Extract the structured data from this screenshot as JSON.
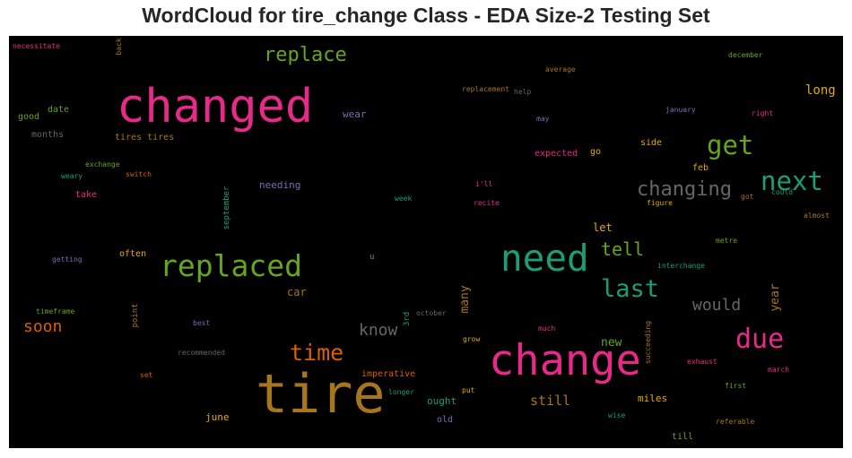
{
  "chart_data": {
    "type": "wordcloud",
    "title": "WordCloud for tire_change Class - EDA Size-2 Testing Set",
    "background": "#000000",
    "palette": [
      "#e7298a",
      "#1b9e77",
      "#66a61e",
      "#d95f02",
      "#7570b3",
      "#e6ab02",
      "#a6761d",
      "#666666"
    ],
    "words": [
      {
        "text": "tire",
        "weight": 1.0,
        "color": "#a6761d",
        "vertical": false
      },
      {
        "text": "changed",
        "weight": 0.86,
        "color": "#e7298a",
        "vertical": false
      },
      {
        "text": "change",
        "weight": 0.79,
        "color": "#e7298a",
        "vertical": false
      },
      {
        "text": "need",
        "weight": 0.68,
        "color": "#1b9e77",
        "vertical": false
      },
      {
        "text": "replaced",
        "weight": 0.55,
        "color": "#66a61e",
        "vertical": false
      },
      {
        "text": "due",
        "weight": 0.5,
        "color": "#e7298a",
        "vertical": false
      },
      {
        "text": "get",
        "weight": 0.49,
        "color": "#66a61e",
        "vertical": false
      },
      {
        "text": "next",
        "weight": 0.48,
        "color": "#1b9e77",
        "vertical": false
      },
      {
        "text": "last",
        "weight": 0.45,
        "color": "#1b9e77",
        "vertical": false
      },
      {
        "text": "time",
        "weight": 0.41,
        "color": "#d95f02",
        "vertical": false
      },
      {
        "text": "replace",
        "weight": 0.37,
        "color": "#66a61e",
        "vertical": false
      },
      {
        "text": "changing",
        "weight": 0.36,
        "color": "#666666",
        "vertical": false
      },
      {
        "text": "tell",
        "weight": 0.34,
        "color": "#66a61e",
        "vertical": false
      },
      {
        "text": "soon",
        "weight": 0.3,
        "color": "#d95f02",
        "vertical": false
      },
      {
        "text": "know",
        "weight": 0.3,
        "color": "#666666",
        "vertical": false
      },
      {
        "text": "would",
        "weight": 0.3,
        "color": "#666666",
        "vertical": false
      },
      {
        "text": "still",
        "weight": 0.25,
        "color": "#a6761d",
        "vertical": false
      },
      {
        "text": "long",
        "weight": 0.24,
        "color": "#e6ab02",
        "vertical": false
      },
      {
        "text": "new",
        "weight": 0.22,
        "color": "#66a61e",
        "vertical": false
      },
      {
        "text": "year",
        "weight": 0.22,
        "color": "#a6761d",
        "vertical": true
      },
      {
        "text": "many",
        "weight": 0.22,
        "color": "#a6761d",
        "vertical": true
      },
      {
        "text": "car",
        "weight": 0.2,
        "color": "#a6761d",
        "vertical": false
      },
      {
        "text": "let",
        "weight": 0.2,
        "color": "#e6ab02",
        "vertical": false
      },
      {
        "text": "wear",
        "weight": 0.19,
        "color": "#7570b3",
        "vertical": false
      },
      {
        "text": "needing",
        "weight": 0.19,
        "color": "#7570b3",
        "vertical": false
      },
      {
        "text": "june",
        "weight": 0.19,
        "color": "#e6ab02",
        "vertical": false
      },
      {
        "text": "miles",
        "weight": 0.18,
        "color": "#e6ab02",
        "vertical": false
      },
      {
        "text": "ought",
        "weight": 0.18,
        "color": "#1b9e77",
        "vertical": false
      },
      {
        "text": "old",
        "weight": 0.17,
        "color": "#7570b3",
        "vertical": false
      },
      {
        "text": "imperative",
        "weight": 0.17,
        "color": "#d95f02",
        "vertical": false
      },
      {
        "text": "months",
        "weight": 0.16,
        "color": "#666666",
        "vertical": false
      },
      {
        "text": "good",
        "weight": 0.16,
        "color": "#66a61e",
        "vertical": false
      },
      {
        "text": "date",
        "weight": 0.16,
        "color": "#66a61e",
        "vertical": false
      },
      {
        "text": "tires tires",
        "weight": 0.16,
        "color": "#a6761d",
        "vertical": false
      },
      {
        "text": "expected",
        "weight": 0.16,
        "color": "#e7298a",
        "vertical": false
      },
      {
        "text": "go",
        "weight": 0.16,
        "color": "#e6ab02",
        "vertical": false
      },
      {
        "text": "side",
        "weight": 0.16,
        "color": "#e6ab02",
        "vertical": false
      },
      {
        "text": "feb",
        "weight": 0.16,
        "color": "#e6ab02",
        "vertical": false
      },
      {
        "text": "often",
        "weight": 0.16,
        "color": "#e6ab02",
        "vertical": false
      },
      {
        "text": "take",
        "weight": 0.16,
        "color": "#e7298a",
        "vertical": false
      },
      {
        "text": "till",
        "weight": 0.16,
        "color": "#66a61e",
        "vertical": false
      },
      {
        "text": "3rd",
        "weight": 0.15,
        "color": "#1b9e77",
        "vertical": true
      },
      {
        "text": "point",
        "weight": 0.15,
        "color": "#a6761d",
        "vertical": true
      },
      {
        "text": "u",
        "weight": 0.15,
        "color": "#66a61e",
        "vertical": false
      },
      {
        "text": "september",
        "weight": 0.15,
        "color": "#1b9e77",
        "vertical": true
      },
      {
        "text": "longer",
        "weight": 0.14,
        "color": "#1b9e77",
        "vertical": false
      },
      {
        "text": "put",
        "weight": 0.13,
        "color": "#e6ab02",
        "vertical": false
      },
      {
        "text": "grow",
        "weight": 0.13,
        "color": "#e6ab02",
        "vertical": false
      },
      {
        "text": "wise",
        "weight": 0.13,
        "color": "#1b9e77",
        "vertical": false
      },
      {
        "text": "first",
        "weight": 0.13,
        "color": "#66a61e",
        "vertical": false
      },
      {
        "text": "exhaust",
        "weight": 0.13,
        "color": "#e7298a",
        "vertical": false
      },
      {
        "text": "march",
        "weight": 0.13,
        "color": "#e7298a",
        "vertical": false
      },
      {
        "text": "metre",
        "weight": 0.13,
        "color": "#66a61e",
        "vertical": false
      },
      {
        "text": "interchange",
        "weight": 0.13,
        "color": "#1b9e77",
        "vertical": false
      },
      {
        "text": "exchange",
        "weight": 0.12,
        "color": "#66a61e",
        "vertical": false
      },
      {
        "text": "switch",
        "weight": 0.12,
        "color": "#d95f02",
        "vertical": false
      },
      {
        "text": "weary",
        "weight": 0.12,
        "color": "#1b9e77",
        "vertical": false
      },
      {
        "text": "week",
        "weight": 0.12,
        "color": "#1b9e77",
        "vertical": false
      },
      {
        "text": "i'll",
        "weight": 0.12,
        "color": "#e7298a",
        "vertical": false
      },
      {
        "text": "recite",
        "weight": 0.12,
        "color": "#e7298a",
        "vertical": false
      },
      {
        "text": "figure",
        "weight": 0.12,
        "color": "#e6ab02",
        "vertical": false
      },
      {
        "text": "got",
        "weight": 0.12,
        "color": "#a6761d",
        "vertical": false
      },
      {
        "text": "could",
        "weight": 0.12,
        "color": "#1b9e77",
        "vertical": false
      },
      {
        "text": "almost",
        "weight": 0.12,
        "color": "#a6761d",
        "vertical": false
      },
      {
        "text": "january",
        "weight": 0.12,
        "color": "#7570b3",
        "vertical": false
      },
      {
        "text": "right",
        "weight": 0.12,
        "color": "#e7298a",
        "vertical": false
      },
      {
        "text": "may",
        "weight": 0.12,
        "color": "#7570b3",
        "vertical": false
      },
      {
        "text": "replacement",
        "weight": 0.12,
        "color": "#a6761d",
        "vertical": false
      },
      {
        "text": "help",
        "weight": 0.12,
        "color": "#666666",
        "vertical": false
      },
      {
        "text": "average",
        "weight": 0.12,
        "color": "#a6761d",
        "vertical": false
      },
      {
        "text": "december",
        "weight": 0.12,
        "color": "#66a61e",
        "vertical": false
      },
      {
        "text": "necessitate",
        "weight": 0.12,
        "color": "#e7298a",
        "vertical": false
      },
      {
        "text": "back",
        "weight": 0.12,
        "color": "#a6761d",
        "vertical": true
      },
      {
        "text": "getting",
        "weight": 0.12,
        "color": "#7570b3",
        "vertical": false
      },
      {
        "text": "timeframe",
        "weight": 0.12,
        "color": "#66a61e",
        "vertical": false
      },
      {
        "text": "best",
        "weight": 0.12,
        "color": "#7570b3",
        "vertical": false
      },
      {
        "text": "recommended",
        "weight": 0.12,
        "color": "#666666",
        "vertical": false
      },
      {
        "text": "set",
        "weight": 0.12,
        "color": "#d95f02",
        "vertical": false
      },
      {
        "text": "october",
        "weight": 0.12,
        "color": "#666666",
        "vertical": false
      },
      {
        "text": "much",
        "weight": 0.12,
        "color": "#e7298a",
        "vertical": false
      },
      {
        "text": "succeeding",
        "weight": 0.12,
        "color": "#a6761d",
        "vertical": true
      },
      {
        "text": "referable",
        "weight": 0.12,
        "color": "#a6761d",
        "vertical": false
      }
    ]
  }
}
